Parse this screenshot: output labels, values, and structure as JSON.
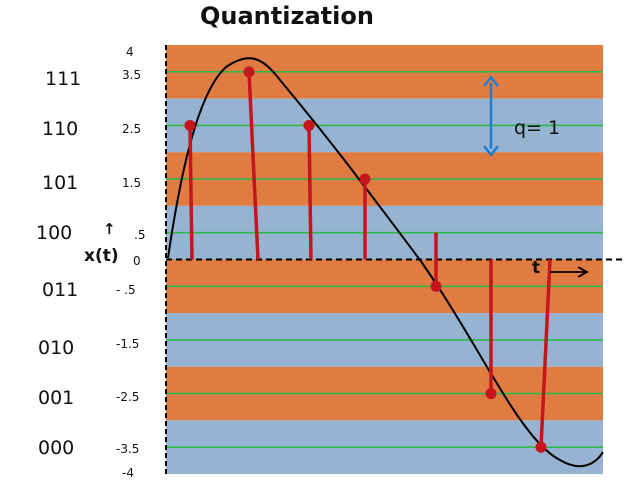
{
  "title": "Quantization",
  "codes": [
    "111",
    "110",
    "101",
    "100",
    "011",
    "010",
    "001",
    "000"
  ],
  "levels": [
    "4",
    "3.5",
    "2.5",
    "1.5",
    ".5",
    "0",
    "- .5",
    "-1.5",
    "-2.5",
    "-3.5",
    "-4"
  ],
  "axis_label": "x(t)",
  "up_arrow": "↑",
  "q_label": "q= 1",
  "t_label": "t",
  "colors": {
    "orange_band": "#E07B42",
    "blue_band": "#96B3D2",
    "green_line": "#2DB84A",
    "red_stem": "#C4161C",
    "curve": "#000000",
    "q_arrow": "#1E7FD0"
  },
  "chart_data": {
    "type": "diagram",
    "y_range": [
      -4,
      4
    ],
    "bands": [
      {
        "from": 3,
        "to": 4,
        "fill": "orange"
      },
      {
        "from": 2,
        "to": 3,
        "fill": "blue"
      },
      {
        "from": 1,
        "to": 2,
        "fill": "orange"
      },
      {
        "from": 0,
        "to": 1,
        "fill": "blue"
      },
      {
        "from": -1,
        "to": 0,
        "fill": "orange"
      },
      {
        "from": -2,
        "to": -1,
        "fill": "blue"
      },
      {
        "from": -3,
        "to": -2,
        "fill": "orange"
      },
      {
        "from": -4,
        "to": -3,
        "fill": "blue"
      }
    ],
    "reconstruction_levels": [
      3.5,
      2.5,
      1.5,
      0.5,
      -0.5,
      -1.5,
      -2.5,
      -3.5
    ],
    "samples": [
      2.5,
      3.5,
      2.5,
      1.5,
      -0.5,
      -2.5,
      -3.5
    ],
    "step": 1
  }
}
